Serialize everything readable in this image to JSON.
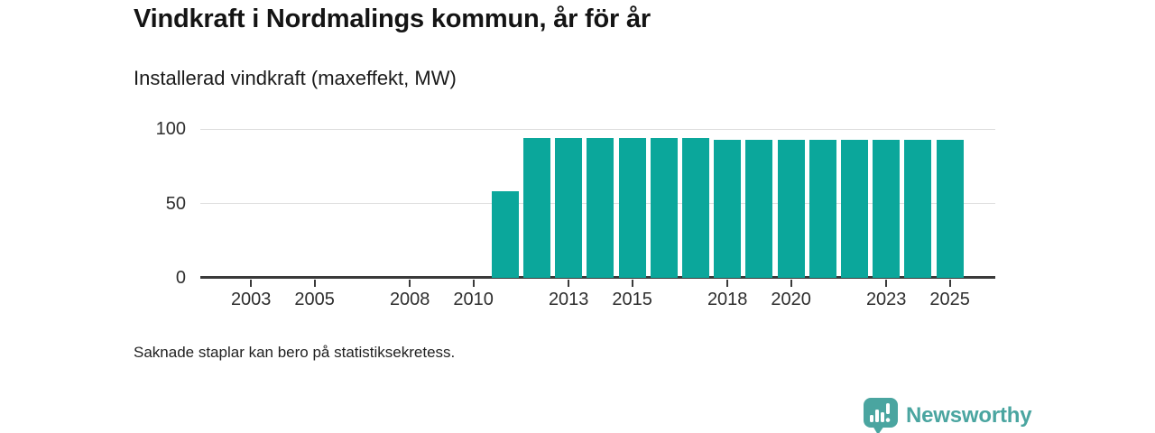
{
  "title": "Vindkraft i Nordmalings kommun, år för år",
  "subtitle": "Installerad vindkraft (maxeffekt, MW)",
  "footnote": "Saknade staplar kan bero på statistiksekretess.",
  "branding": {
    "name": "Newsworthy",
    "logo_icon": "newsworthy-bar-chart-bubble-icon",
    "color": "#4AA5A0"
  },
  "colors": {
    "bar": "#0BA79B",
    "grid": "#DEDEDE",
    "axis": "#3A3A3A",
    "text": "#1A1A1A"
  },
  "chart_data": {
    "type": "bar",
    "title": "Vindkraft i Nordmalings kommun, år för år",
    "subtitle": "Installerad vindkraft (maxeffekt, MW)",
    "xlabel": "",
    "ylabel": "",
    "categories": [
      2002,
      2003,
      2004,
      2005,
      2006,
      2007,
      2008,
      2009,
      2010,
      2011,
      2012,
      2013,
      2014,
      2015,
      2016,
      2017,
      2018,
      2019,
      2020,
      2021,
      2022,
      2023,
      2024,
      2025
    ],
    "values": [
      null,
      null,
      null,
      null,
      null,
      null,
      null,
      null,
      null,
      58,
      94,
      94,
      94,
      94,
      94,
      94,
      93,
      93,
      93,
      93,
      93,
      93,
      93,
      93
    ],
    "unit": "MW",
    "ylim": [
      0,
      100
    ],
    "y_ticks": [
      0,
      50,
      100
    ],
    "y_tick_labels": [
      "0",
      "50",
      "100"
    ],
    "x_tick_labels": [
      "2003",
      "2005",
      "2008",
      "2010",
      "2013",
      "2015",
      "2018",
      "2020",
      "2023",
      "2025"
    ],
    "grid": true,
    "legend": false,
    "bar_color": "#0BA79B",
    "note": "Bars missing for 2002–2010 (no/zero installed capacity shown)"
  }
}
